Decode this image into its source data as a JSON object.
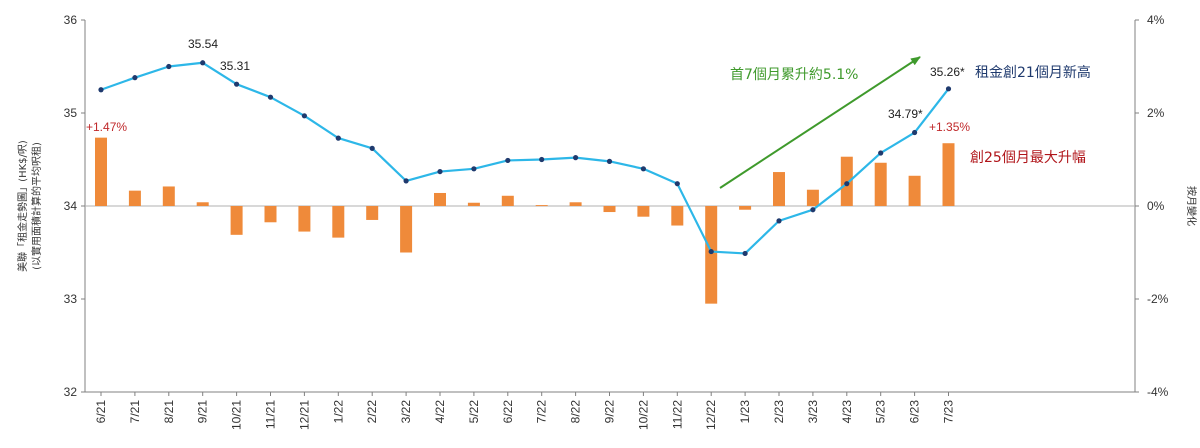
{
  "chart_data": {
    "type": "bar+line",
    "title": "",
    "categories": [
      "6/21",
      "7/21",
      "8/21",
      "9/21",
      "10/21",
      "11/21",
      "12/21",
      "1/22",
      "2/22",
      "3/22",
      "4/22",
      "5/22",
      "6/22",
      "7/22",
      "8/22",
      "9/22",
      "10/22",
      "11/22",
      "12/22",
      "1/23",
      "2/23",
      "3/23",
      "4/23",
      "5/23",
      "6/23",
      "7/23"
    ],
    "series": [
      {
        "type": "line",
        "axis": "left",
        "values": [
          35.25,
          35.38,
          35.5,
          35.54,
          35.31,
          35.17,
          34.97,
          34.73,
          34.62,
          34.27,
          34.37,
          34.4,
          34.49,
          34.5,
          34.52,
          34.48,
          34.4,
          34.24,
          33.51,
          33.49,
          33.84,
          33.96,
          34.24,
          34.57,
          34.79,
          35.26
        ]
      },
      {
        "type": "bar",
        "axis": "right",
        "unit": "%",
        "values": [
          1.47,
          0.33,
          0.42,
          0.08,
          -0.62,
          -0.35,
          -0.55,
          -0.68,
          -0.3,
          -1.0,
          0.28,
          0.07,
          0.22,
          0.02,
          0.08,
          -0.13,
          -0.23,
          -0.42,
          -2.1,
          -0.08,
          0.73,
          0.35,
          1.06,
          0.93,
          0.65,
          1.35
        ]
      }
    ],
    "ylabel_left": "美聯「租金走勢圖」(HK$/呎)",
    "ylabel_left_sub": "(以實用面積計算的平均呎租)",
    "ylabel_right": "按月變化",
    "ylim_left": [
      32,
      36
    ],
    "yticks_left": [
      "32",
      "33",
      "34",
      "35",
      "36"
    ],
    "ylim_right": [
      -4,
      4
    ],
    "yticks_right": [
      "-4%",
      "-2%",
      "0%",
      "2%",
      "4%"
    ],
    "grid": false,
    "legend": "none",
    "annotations": {
      "peak_first": "35.54",
      "peak_second": "35.31",
      "first_bar": "+1.47%",
      "latest_line": "35.26*",
      "prev_line": "34.79*",
      "latest_bar": "+1.35%",
      "trend_note": "首7個月累升約5.1%",
      "new_high_note": "租金創21個月新高",
      "largest_rise_note": "創25個月最大升幅"
    },
    "colors": {
      "line": "#2db7e8",
      "line_marker": "#1f3a6e",
      "bar": "#ef8a3a",
      "arrow": "#3f9a2c",
      "axis": "#808080",
      "zero_line": "#b0b0b0"
    }
  }
}
